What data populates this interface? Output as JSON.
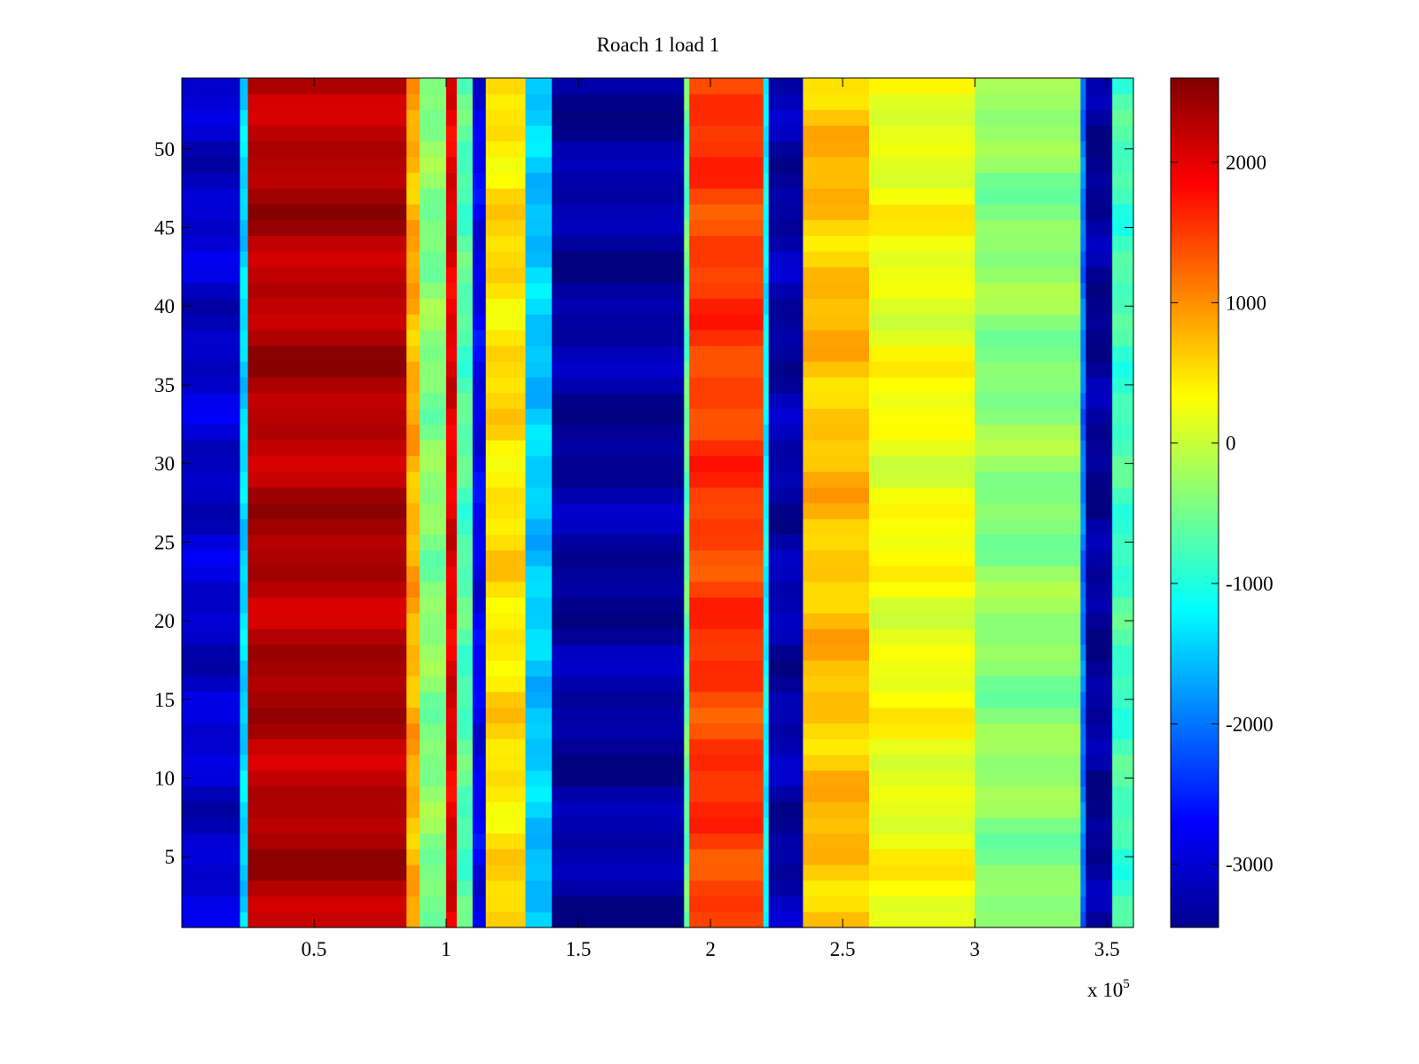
{
  "chart_data": {
    "type": "heatmap",
    "title": "Roach 1 load 1",
    "xlabel": "",
    "ylabel": "",
    "x_multiplier_label": "x 10",
    "x_multiplier_exponent": "5",
    "xlim": [
      0,
      3.6
    ],
    "ylim": [
      0.5,
      54.5
    ],
    "x_ticks": [
      0.5,
      1,
      1.5,
      2,
      2.5,
      3,
      3.5
    ],
    "x_tick_labels": [
      "0.5",
      "1",
      "1.5",
      "2",
      "2.5",
      "3",
      "3.5"
    ],
    "y_ticks": [
      5,
      10,
      15,
      20,
      25,
      30,
      35,
      40,
      45,
      50
    ],
    "y_tick_labels": [
      "5",
      "10",
      "15",
      "20",
      "25",
      "30",
      "35",
      "40",
      "45",
      "50"
    ],
    "rows": 54,
    "colormap": "jet",
    "clim": [
      -3450,
      2600
    ],
    "colorbar_ticks": [
      2000,
      1000,
      0,
      -1000,
      -2000,
      -3000
    ],
    "colorbar_tick_labels": [
      "2000",
      "1000",
      "0",
      "-1000",
      "-2000",
      "-3000"
    ],
    "column_profile": [
      {
        "x0": 0.0,
        "x1": 0.22,
        "value": -3000
      },
      {
        "x0": 0.22,
        "x1": 0.25,
        "value": -1400
      },
      {
        "x0": 0.25,
        "x1": 0.85,
        "value": 2300
      },
      {
        "x0": 0.85,
        "x1": 0.9,
        "value": 800
      },
      {
        "x0": 0.9,
        "x1": 1.0,
        "value": -400
      },
      {
        "x0": 1.0,
        "x1": 1.04,
        "value": 2000
      },
      {
        "x0": 1.04,
        "x1": 1.1,
        "value": -700
      },
      {
        "x0": 1.1,
        "x1": 1.15,
        "value": -2800
      },
      {
        "x0": 1.15,
        "x1": 1.3,
        "value": 500
      },
      {
        "x0": 1.3,
        "x1": 1.4,
        "value": -1500
      },
      {
        "x0": 1.4,
        "x1": 1.9,
        "value": -3250
      },
      {
        "x0": 1.9,
        "x1": 1.92,
        "value": -600
      },
      {
        "x0": 1.92,
        "x1": 2.2,
        "value": 1500
      },
      {
        "x0": 2.2,
        "x1": 2.22,
        "value": -1200
      },
      {
        "x0": 2.22,
        "x1": 2.35,
        "value": -3200
      },
      {
        "x0": 2.35,
        "x1": 2.6,
        "value": 700
      },
      {
        "x0": 2.6,
        "x1": 3.0,
        "value": 250
      },
      {
        "x0": 3.0,
        "x1": 3.4,
        "value": -350
      },
      {
        "x0": 3.4,
        "x1": 3.42,
        "value": -2000
      },
      {
        "x0": 3.42,
        "x1": 3.52,
        "value": -3300
      },
      {
        "x0": 3.52,
        "x1": 3.6,
        "value": -800
      }
    ]
  }
}
